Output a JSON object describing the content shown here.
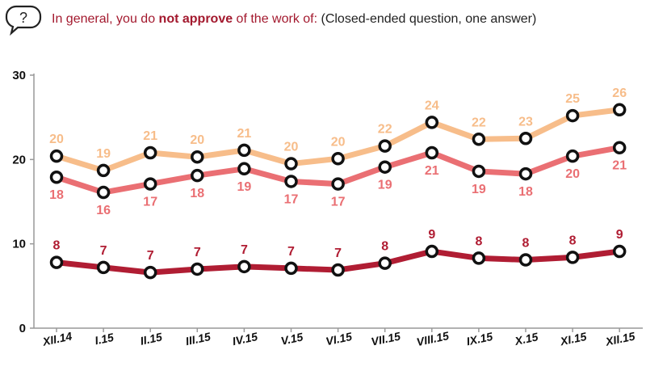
{
  "question": {
    "part1": "In general, you do ",
    "part2": "not approve",
    "part3": " of the work of:",
    "part4": " (Closed-ended question, one answer)",
    "icon": "question-bubble-icon"
  },
  "chart_data": {
    "type": "line",
    "categories": [
      "XII.14",
      "I.15",
      "II.15",
      "III.15",
      "IV.15",
      "V.15",
      "VI.15",
      "VII.15",
      "VIII.15",
      "IX.15",
      "X.15",
      "XI.15",
      "XII.15"
    ],
    "ylim": [
      0,
      30
    ],
    "yticks": [
      0,
      10,
      20,
      30
    ],
    "grid": false,
    "series": [
      {
        "color": "#f7bd8a",
        "values": [
          20.4,
          18.7,
          20.8,
          20.3,
          21.1,
          19.5,
          20.1,
          21.6,
          24.4,
          22.4,
          22.5,
          25.2,
          25.9
        ],
        "labels": [
          "20",
          "19",
          "21",
          "20",
          "21",
          "20",
          "20",
          "22",
          "24",
          "22",
          "23",
          "25",
          "26"
        ]
      },
      {
        "color": "#ea6f73",
        "values": [
          17.9,
          16.1,
          17.1,
          18.1,
          18.9,
          17.4,
          17.1,
          19.1,
          20.8,
          18.6,
          18.3,
          20.4,
          21.4
        ],
        "labels": [
          "18",
          "16",
          "17",
          "18",
          "19",
          "17",
          "17",
          "19",
          "21",
          "19",
          "18",
          "20",
          "21"
        ]
      },
      {
        "color": "#b01d33",
        "values": [
          7.8,
          7.2,
          6.6,
          7.0,
          7.3,
          7.1,
          6.9,
          7.7,
          9.1,
          8.3,
          8.1,
          8.4,
          9.1
        ],
        "labels": [
          "8",
          "7",
          "7",
          "7",
          "7",
          "7",
          "7",
          "8",
          "9",
          "8",
          "8",
          "8",
          "9"
        ]
      }
    ]
  }
}
